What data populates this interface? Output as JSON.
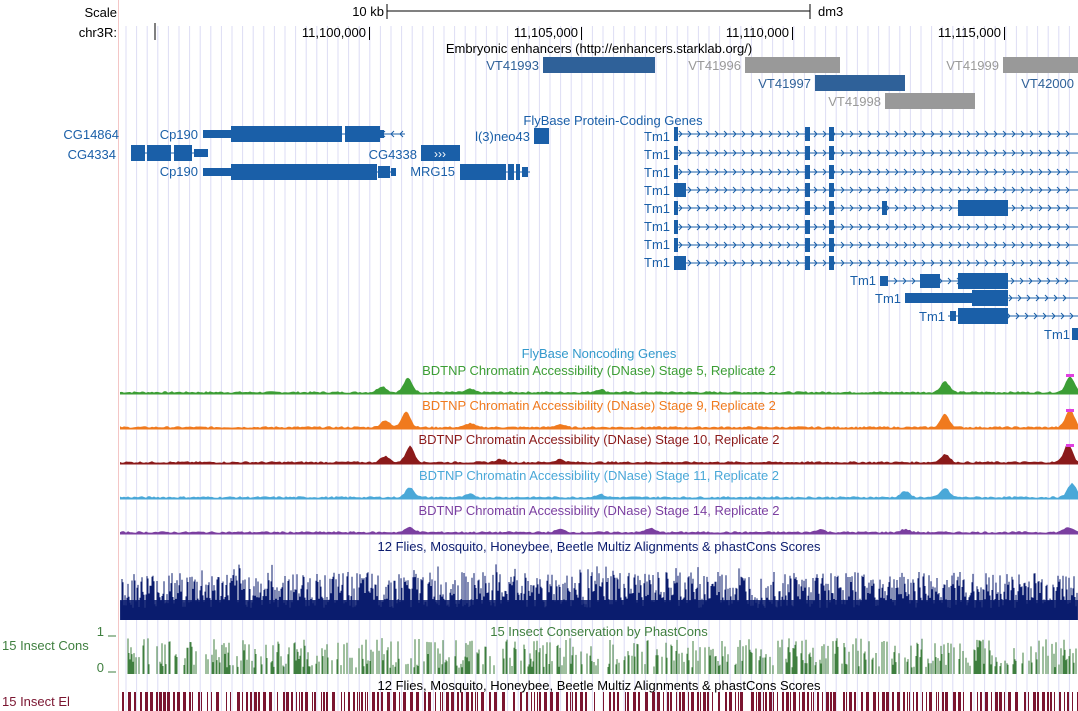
{
  "header": {
    "scale_label": "Scale",
    "scale_value": "10 kb",
    "assembly": "dm3",
    "chrom_label": "chr3R:",
    "ticks": [
      "11,100,000",
      "11,105,000",
      "11,110,000",
      "11,115,000"
    ]
  },
  "tracks": {
    "enhancers": {
      "title": "Embryonic enhancers (http://enhancers.starklab.org/)",
      "items": [
        "VT41993",
        "VT41996",
        "VT41997",
        "VT41998",
        "VT41999",
        "VT42000"
      ]
    },
    "flybase_coding": {
      "title": "FlyBase Protein-Coding Genes",
      "genes": [
        "CG14864",
        "Cp190",
        "CG4334",
        "CG4338",
        "Cp190",
        "MRG15",
        "l(3)neo43",
        "Tm1",
        "Tm1",
        "Tm1",
        "Tm1",
        "Tm1",
        "Tm1",
        "Tm1",
        "Tm1",
        "Tm1",
        "Tm1",
        "Tm1",
        "Tm1"
      ]
    },
    "flybase_noncoding": {
      "title": "FlyBase Noncoding Genes"
    },
    "dnase": [
      {
        "title": "BDTNP Chromatin Accessibility (DNase) Stage 5, Replicate 2",
        "color": "#3c9e35"
      },
      {
        "title": "BDTNP Chromatin Accessibility (DNase) Stage 9, Replicate 2",
        "color": "#f07a1e"
      },
      {
        "title": "BDTNP Chromatin Accessibility (DNase) Stage 10, Replicate 2",
        "color": "#8b1a1a"
      },
      {
        "title": "BDTNP Chromatin Accessibility (DNase) Stage 11, Replicate 2",
        "color": "#4aa8d8"
      },
      {
        "title": "BDTNP Chromatin Accessibility (DNase) Stage 14, Replicate 2",
        "color": "#7b3fa0"
      }
    ],
    "multiz": {
      "title": "12 Flies, Mosquito, Honeybee, Beetle Multiz Alignments & phastCons Scores",
      "color": "#0b1c6e"
    },
    "phastcons": {
      "title": "15 Insect Conservation by PhastCons",
      "side_label": "15 Insect Cons",
      "ymax": "1",
      "ymin": "0",
      "color": "#3f7f3f"
    },
    "elements": {
      "title": "12 Flies, Mosquito, Honeybee, Beetle Multiz Alignments & phastCons Scores",
      "side_label": "15 Insect El",
      "color": "#7a1530"
    }
  },
  "colors": {
    "gene": "#1a5fa8",
    "enh_blue": "#2f6199",
    "enh_gray": "#999999",
    "grid": "#dcdcf4"
  }
}
